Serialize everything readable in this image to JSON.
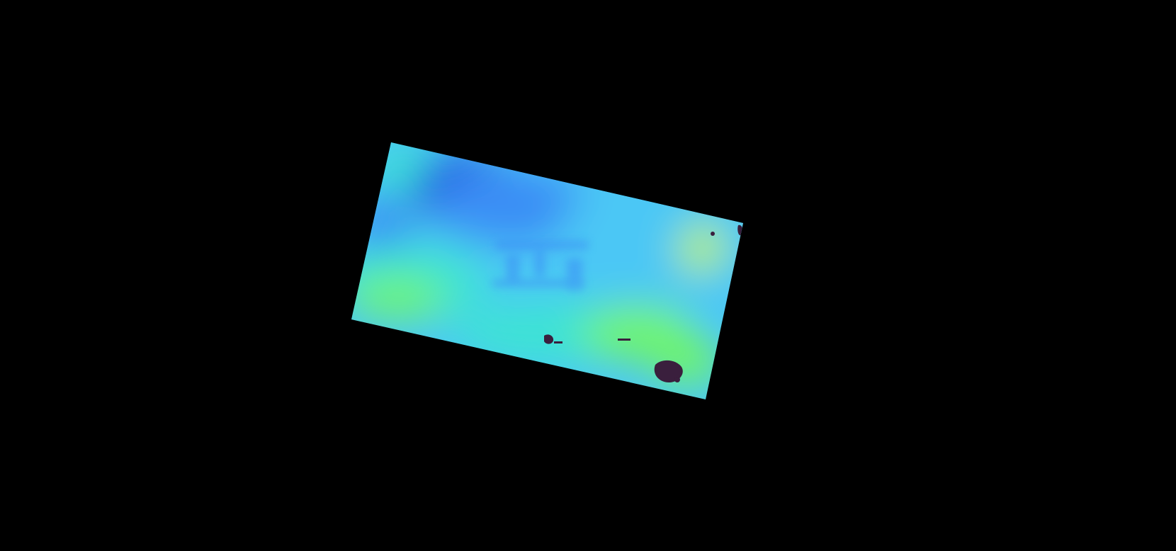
{
  "scene": {
    "background_color": "#000000",
    "subject": "rotated-false-color-depth-map",
    "colormap": "turbo-like",
    "palette": {
      "deep_blue": "#1f4fdc",
      "mid_blue": "#3b8ef5",
      "light_blue": "#4cc7f5",
      "cyan": "#3ee3d4",
      "green": "#6ff56a",
      "yellow_green": "#b8f25a",
      "invalid": "#3a1f3d"
    },
    "invalid_patches": 4
  }
}
